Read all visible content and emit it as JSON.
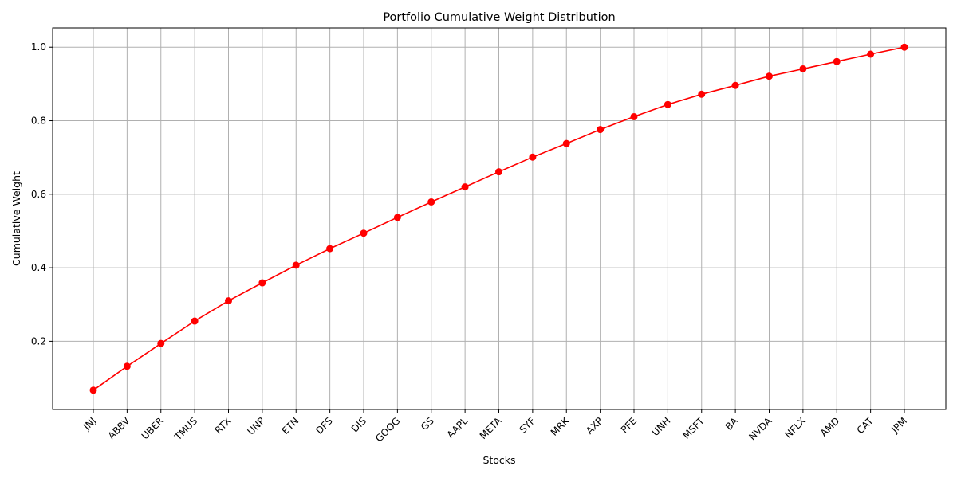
{
  "chart_data": {
    "type": "line",
    "title": "Portfolio Cumulative Weight Distribution",
    "xlabel": "Stocks",
    "ylabel": "Cumulative Weight",
    "categories": [
      "JNJ",
      "ABBV",
      "UBER",
      "TMUS",
      "RTX",
      "UNP",
      "ETN",
      "DFS",
      "DIS",
      "GOOG",
      "GS",
      "AAPL",
      "META",
      "SYF",
      "MRK",
      "AXP",
      "PFE",
      "UNH",
      "MSFT",
      "BA",
      "NVDA",
      "NFLX",
      "AMD",
      "CAT",
      "JPM"
    ],
    "series": [
      {
        "values": [
          0.067,
          0.132,
          0.194,
          0.255,
          0.31,
          0.359,
          0.407,
          0.452,
          0.494,
          0.537,
          0.579,
          0.62,
          0.661,
          0.701,
          0.738,
          0.776,
          0.811,
          0.844,
          0.872,
          0.896,
          0.921,
          0.941,
          0.961,
          0.981,
          1.0
        ],
        "color": "#ff0000",
        "marker": "circle"
      }
    ],
    "ylim": [
      0.0145,
      1.0525
    ],
    "yticks": [
      "0.2",
      "0.4",
      "0.6",
      "0.8",
      "1.0"
    ],
    "ytick_values": [
      0.2,
      0.4,
      0.6,
      0.8,
      1.0
    ],
    "grid": true,
    "xtick_rotation": 45
  }
}
